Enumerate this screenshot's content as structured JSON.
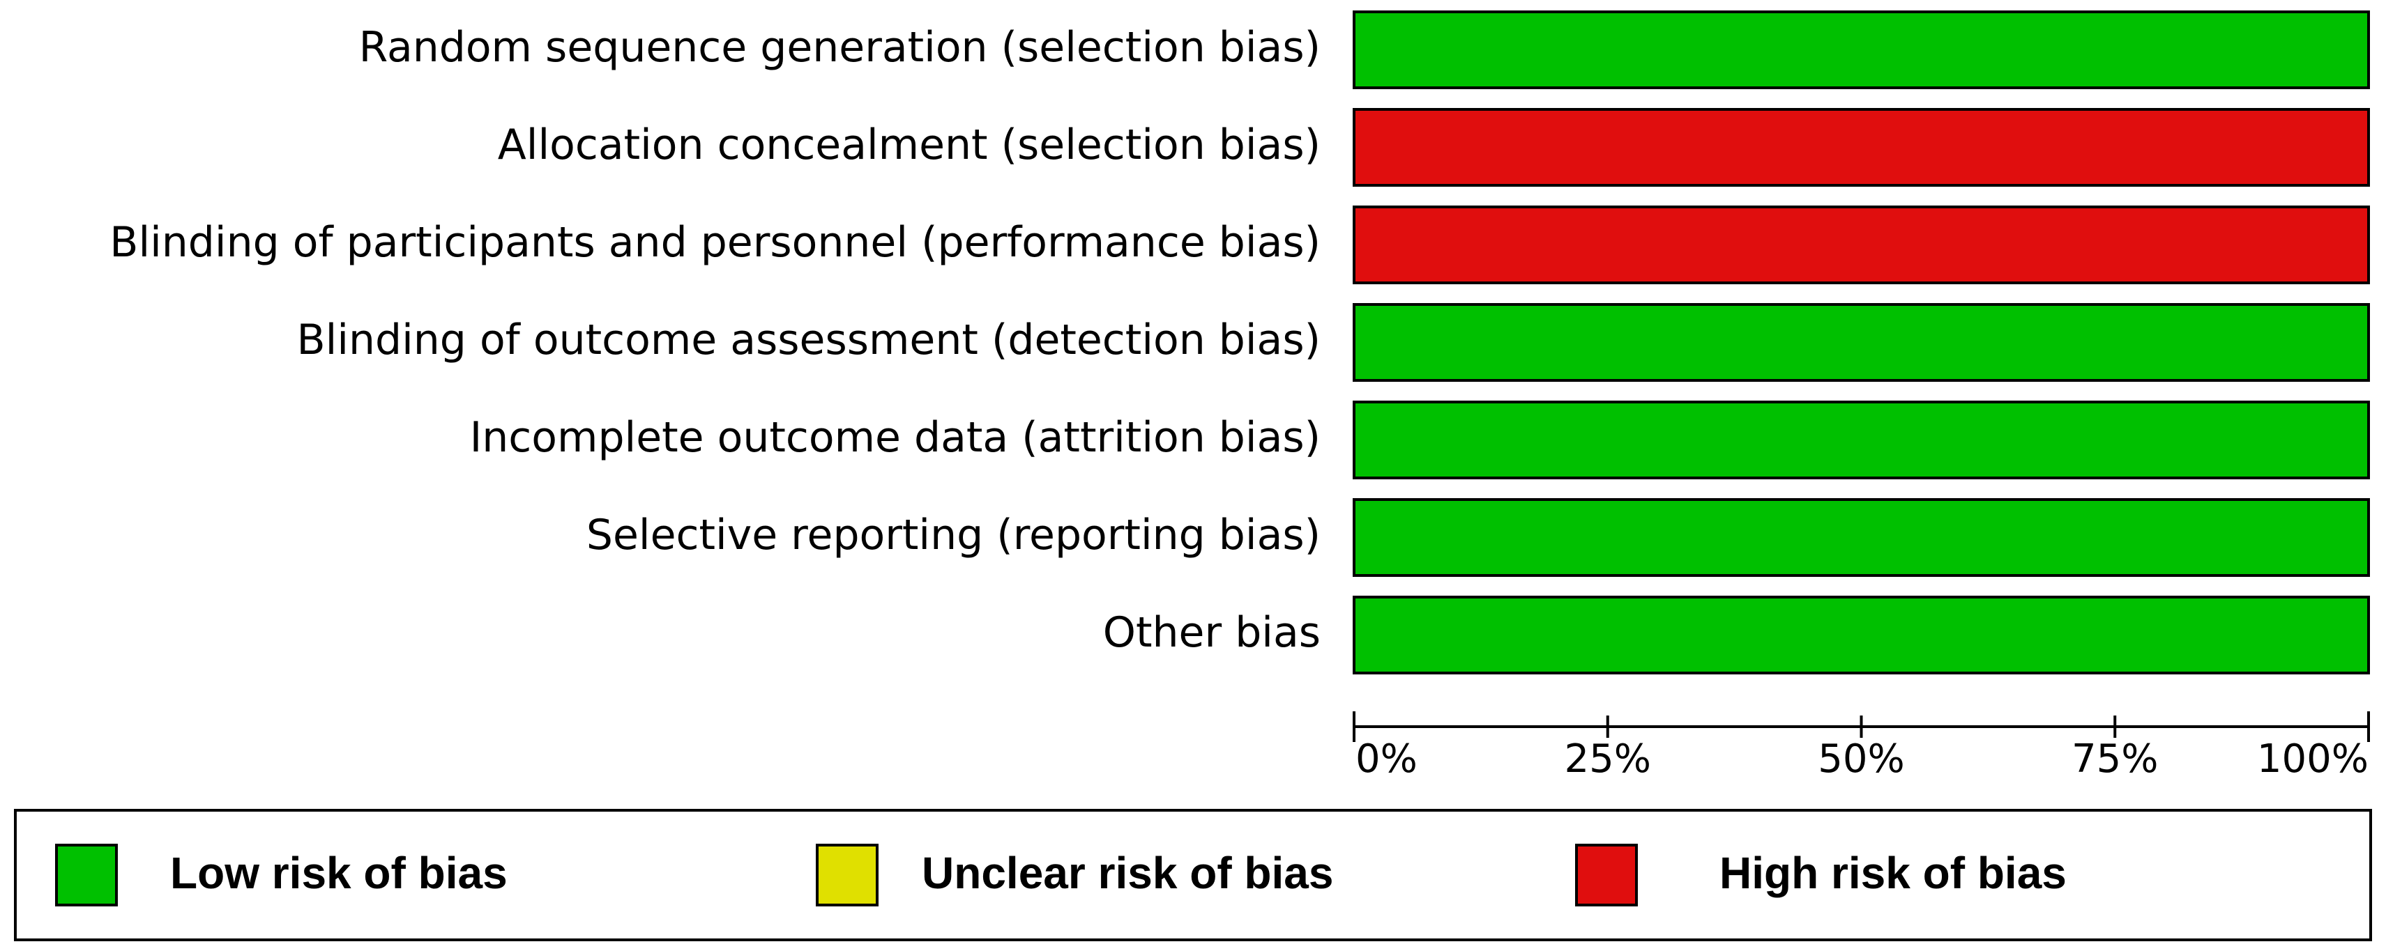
{
  "chart_data": {
    "type": "stacked-bar-horizontal",
    "categories": [
      "Random sequence generation (selection bias)",
      "Allocation concealment (selection bias)",
      "Blinding of participants and personnel (performance bias)",
      "Blinding of outcome assessment (detection bias)",
      "Incomplete outcome data (attrition bias)",
      "Selective reporting (reporting bias)",
      "Other bias"
    ],
    "series": [
      {
        "name": "Low risk of bias",
        "color": "#00c000",
        "values": [
          100,
          0,
          0,
          100,
          100,
          100,
          100
        ]
      },
      {
        "name": "Unclear risk of bias",
        "color": "#e0e000",
        "values": [
          0,
          0,
          0,
          0,
          0,
          0,
          0
        ]
      },
      {
        "name": "High risk of bias",
        "color": "#e00e0e",
        "values": [
          0,
          100,
          100,
          0,
          0,
          0,
          0
        ]
      }
    ],
    "xlim": [
      0,
      100
    ],
    "xticks": [
      {
        "value": 0,
        "label": "0%"
      },
      {
        "value": 25,
        "label": "25%"
      },
      {
        "value": 50,
        "label": "50%"
      },
      {
        "value": 75,
        "label": "75%"
      },
      {
        "value": 100,
        "label": "100%"
      }
    ]
  }
}
